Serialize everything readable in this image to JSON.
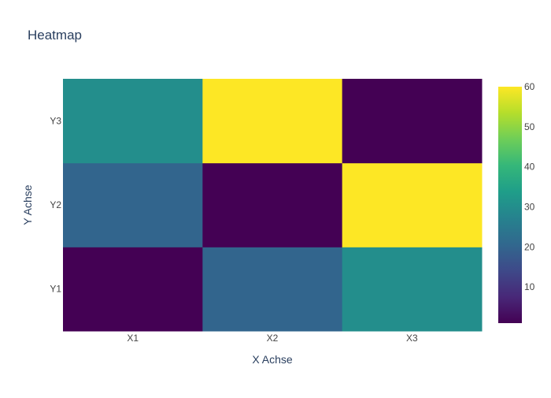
{
  "chart_data": {
    "type": "heatmap",
    "title": "Heatmap",
    "xlabel": "X Achse",
    "ylabel": "Y Achse",
    "x": [
      "X1",
      "X2",
      "X3"
    ],
    "y": [
      "Y1",
      "Y2",
      "Y3"
    ],
    "z": [
      [
        1,
        20,
        30
      ],
      [
        20,
        1,
        60
      ],
      [
        30,
        60,
        1
      ]
    ],
    "colorscale": "Viridis",
    "zmin": 1,
    "zmax": 60,
    "colorbar": {
      "ticks": [
        10,
        20,
        30,
        40,
        50,
        60
      ],
      "placement": "right"
    },
    "grid": false
  }
}
